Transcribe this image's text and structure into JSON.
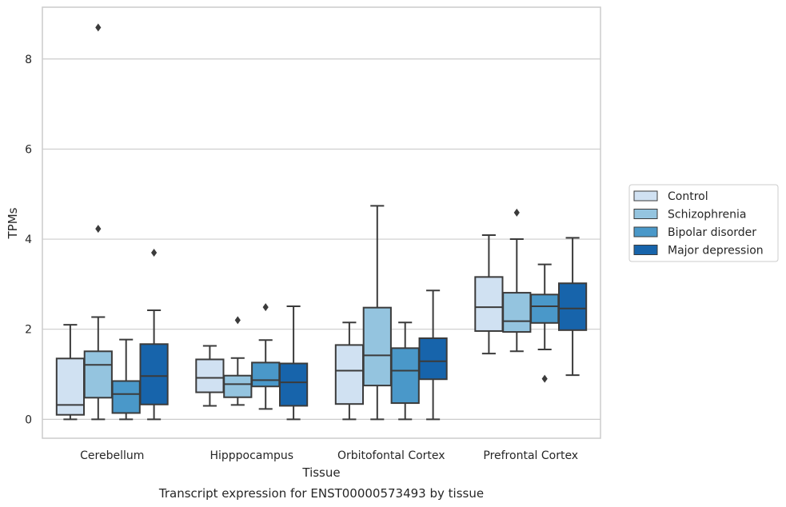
{
  "chart_data": {
    "type": "box",
    "title": "",
    "caption": "Transcript expression for ENST00000573493 by tissue",
    "xlabel": "Tissue",
    "ylabel": "TPMs",
    "ylim": [
      -0.42,
      9.15
    ],
    "yticks": [
      0,
      2,
      4,
      6,
      8
    ],
    "grid": "horizontal",
    "legend_position": "right",
    "categories": [
      "Cerebellum",
      "Hipppocampus",
      "Orbitofontal Cortex",
      "Prefrontal Cortex"
    ],
    "series": [
      {
        "name": "Control",
        "color": "#d0e1f2",
        "boxes": [
          {
            "whisker_low": 0.0,
            "q1": 0.1,
            "median": 0.32,
            "q3": 1.35,
            "whisker_high": 2.1,
            "outliers": []
          },
          {
            "whisker_low": 0.3,
            "q1": 0.6,
            "median": 0.92,
            "q3": 1.33,
            "whisker_high": 1.63,
            "outliers": []
          },
          {
            "whisker_low": 0.0,
            "q1": 0.34,
            "median": 1.08,
            "q3": 1.65,
            "whisker_high": 2.15,
            "outliers": []
          },
          {
            "whisker_low": 1.46,
            "q1": 1.96,
            "median": 2.49,
            "q3": 3.16,
            "whisker_high": 4.09,
            "outliers": []
          }
        ]
      },
      {
        "name": "Schizophrenia",
        "color": "#94c4df",
        "boxes": [
          {
            "whisker_low": 0.0,
            "q1": 0.48,
            "median": 1.21,
            "q3": 1.51,
            "whisker_high": 2.27,
            "outliers": [
              4.23,
              8.7
            ]
          },
          {
            "whisker_low": 0.32,
            "q1": 0.49,
            "median": 0.78,
            "q3": 0.97,
            "whisker_high": 1.36,
            "outliers": [
              2.2
            ]
          },
          {
            "whisker_low": 0.0,
            "q1": 0.75,
            "median": 1.42,
            "q3": 2.48,
            "whisker_high": 4.74,
            "outliers": []
          },
          {
            "whisker_low": 1.51,
            "q1": 1.94,
            "median": 2.18,
            "q3": 2.81,
            "whisker_high": 4.0,
            "outliers": [
              4.59
            ]
          }
        ]
      },
      {
        "name": "Bipolar disorder",
        "color": "#4a98c9",
        "boxes": [
          {
            "whisker_low": 0.0,
            "q1": 0.14,
            "median": 0.56,
            "q3": 0.85,
            "whisker_high": 1.77,
            "outliers": []
          },
          {
            "whisker_low": 0.23,
            "q1": 0.73,
            "median": 0.87,
            "q3": 1.26,
            "whisker_high": 1.76,
            "outliers": [
              2.49
            ]
          },
          {
            "whisker_low": 0.0,
            "q1": 0.36,
            "median": 1.08,
            "q3": 1.58,
            "whisker_high": 2.15,
            "outliers": []
          },
          {
            "whisker_low": 1.55,
            "q1": 2.14,
            "median": 2.51,
            "q3": 2.77,
            "whisker_high": 3.44,
            "outliers": [
              0.9
            ]
          }
        ]
      },
      {
        "name": "Major depression",
        "color": "#1764ab",
        "boxes": [
          {
            "whisker_low": 0.0,
            "q1": 0.33,
            "median": 0.96,
            "q3": 1.67,
            "whisker_high": 2.42,
            "outliers": [
              3.7
            ]
          },
          {
            "whisker_low": 0.0,
            "q1": 0.3,
            "median": 0.82,
            "q3": 1.24,
            "whisker_high": 2.51,
            "outliers": []
          },
          {
            "whisker_low": 0.0,
            "q1": 0.89,
            "median": 1.29,
            "q3": 1.8,
            "whisker_high": 2.86,
            "outliers": []
          },
          {
            "whisker_low": 0.98,
            "q1": 1.98,
            "median": 2.46,
            "q3": 3.02,
            "whisker_high": 4.03,
            "outliers": []
          }
        ]
      }
    ]
  },
  "colors": {
    "gridline": "#cccccc",
    "frame": "#cccccc",
    "box_edge": "#3b3b3b",
    "text": "#262626"
  }
}
